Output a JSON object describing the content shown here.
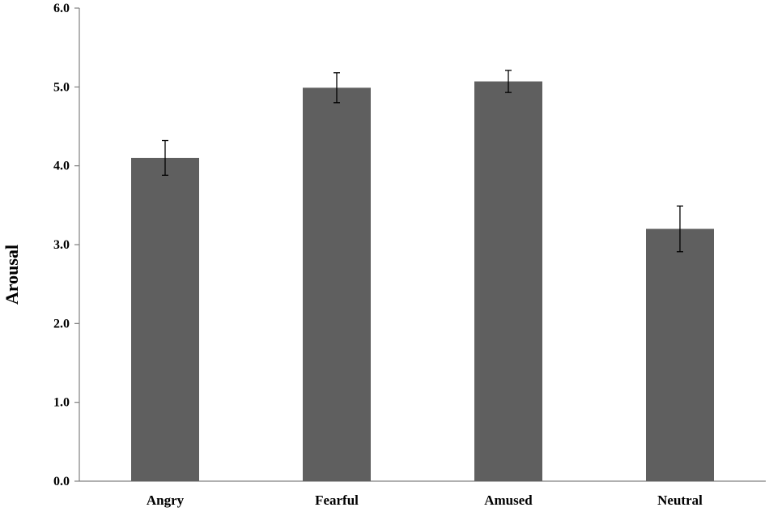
{
  "chart_data": {
    "type": "bar",
    "title": "",
    "xlabel": "",
    "ylabel": "Arousal",
    "ylim": [
      0,
      6
    ],
    "yticks": [
      "0.0",
      "1.0",
      "2.0",
      "3.0",
      "4.0",
      "5.0",
      "6.0"
    ],
    "categories": [
      "Angry",
      "Fearful",
      "Amused",
      "Neutral"
    ],
    "values": [
      4.1,
      4.99,
      5.07,
      3.2
    ],
    "errors": [
      0.22,
      0.19,
      0.14,
      0.29
    ],
    "grid": false,
    "legend": "none",
    "bar_color": "#5f5f5f",
    "axis_color": "#808080"
  }
}
